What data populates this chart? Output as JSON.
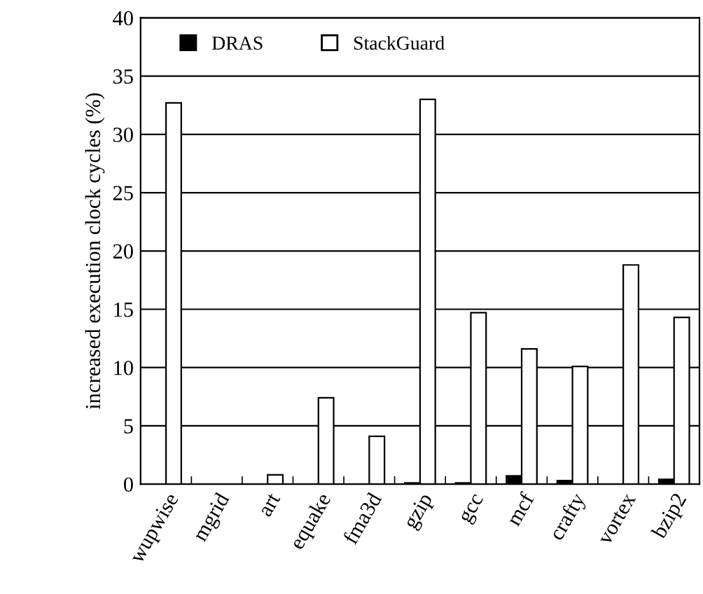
{
  "chart_data": {
    "type": "bar",
    "ylabel": "increased execution clock cycles (%)",
    "categories": [
      "wupwise",
      "mgrid",
      "art",
      "equake",
      "fma3d",
      "gzip",
      "gcc",
      "mcf",
      "crafty",
      "vortex",
      "bzip2"
    ],
    "series": [
      {
        "name": "DRAS",
        "color": "#000000",
        "values": [
          0,
          0,
          0,
          0,
          0,
          0.1,
          0.1,
          0.7,
          0.3,
          0,
          0.4
        ]
      },
      {
        "name": "StackGuard",
        "color": "#ffffff",
        "values": [
          32.7,
          0,
          0.8,
          7.4,
          4.1,
          33.0,
          14.7,
          11.6,
          10.1,
          18.8,
          14.3
        ]
      }
    ],
    "ylim": [
      0,
      40
    ],
    "yticks": [
      0,
      5,
      10,
      15,
      20,
      25,
      30,
      35,
      40
    ],
    "grid": "y",
    "legend": "top left"
  }
}
